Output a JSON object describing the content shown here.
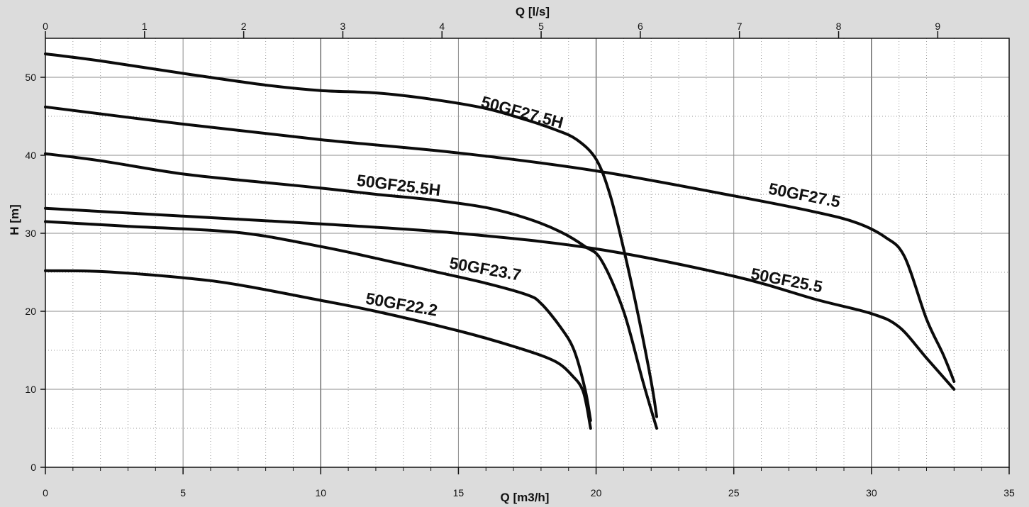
{
  "chart_data": {
    "type": "line",
    "title": "",
    "xlabel": "Q [m3/h]",
    "xlabel_top": "Q [l/s]",
    "ylabel": "H [m]",
    "xlim": [
      0,
      35
    ],
    "x2lim": [
      0,
      9.72
    ],
    "ylim": [
      0,
      55
    ],
    "x_ticks": [
      0,
      5,
      10,
      15,
      20,
      25,
      30,
      35
    ],
    "x2_ticks": [
      0,
      1,
      2,
      3,
      4,
      5,
      6,
      7,
      8,
      9
    ],
    "y_ticks": [
      0,
      10,
      20,
      30,
      40,
      50
    ],
    "grid": true,
    "legend": "inline labels",
    "series": [
      {
        "name": "50GF27.5H",
        "x": [
          0,
          2,
          5,
          8,
          10,
          12,
          14,
          16,
          17.5,
          18.5,
          19.3,
          20,
          20.5,
          21,
          21.5,
          22,
          22.2
        ],
        "y": [
          53,
          52.1,
          50.5,
          49,
          48.3,
          48,
          47.2,
          46,
          44.5,
          43.3,
          42,
          39.5,
          35,
          28,
          20,
          11,
          6.5
        ],
        "label_text": "50GF27.5H"
      },
      {
        "name": "50GF27.5",
        "x": [
          0,
          5,
          10,
          15,
          20,
          25,
          28,
          29.5,
          30.5,
          31.2,
          32,
          32.6,
          33
        ],
        "y": [
          46.2,
          44,
          42,
          40.3,
          38,
          34.8,
          32.7,
          31.3,
          29.5,
          27,
          19,
          14.5,
          11
        ],
        "label_text": "50GF27.5"
      },
      {
        "name": "50GF25.5H",
        "x": [
          0,
          2,
          5,
          8,
          10,
          12,
          14,
          16,
          17.5,
          18.7,
          19.6,
          20.2,
          21,
          21.7,
          22.2
        ],
        "y": [
          40.2,
          39.3,
          37.6,
          36.5,
          35.8,
          35,
          34.3,
          33.3,
          31.9,
          30.2,
          28.3,
          26.5,
          20,
          11,
          5
        ],
        "label_text": "50GF25.5H"
      },
      {
        "name": "50GF25.5",
        "x": [
          0,
          5,
          10,
          15,
          20,
          25,
          28,
          30,
          31,
          32,
          33
        ],
        "y": [
          33.2,
          32.2,
          31.2,
          30,
          28,
          24.5,
          21.5,
          19.7,
          18,
          14,
          10
        ],
        "label_text": "50GF25.5"
      },
      {
        "name": "50GF23.7",
        "x": [
          0,
          3,
          7,
          10,
          12,
          14,
          16,
          17.5,
          18,
          18.7,
          19.2,
          19.6,
          19.8
        ],
        "y": [
          31.5,
          30.9,
          30.1,
          28.3,
          26.8,
          25.2,
          23.6,
          22.1,
          21,
          18,
          15,
          10,
          6
        ],
        "label_text": "50GF23.7"
      },
      {
        "name": "50GF22.2",
        "x": [
          0,
          2,
          5,
          7,
          10,
          12,
          15,
          17,
          18.5,
          19.2,
          19.5,
          19.65,
          19.8
        ],
        "y": [
          25.2,
          25.1,
          24.3,
          23.4,
          21.4,
          20,
          17.5,
          15.5,
          13.6,
          11.5,
          10,
          8,
          5
        ],
        "label_text": "50GF22.2"
      }
    ]
  }
}
